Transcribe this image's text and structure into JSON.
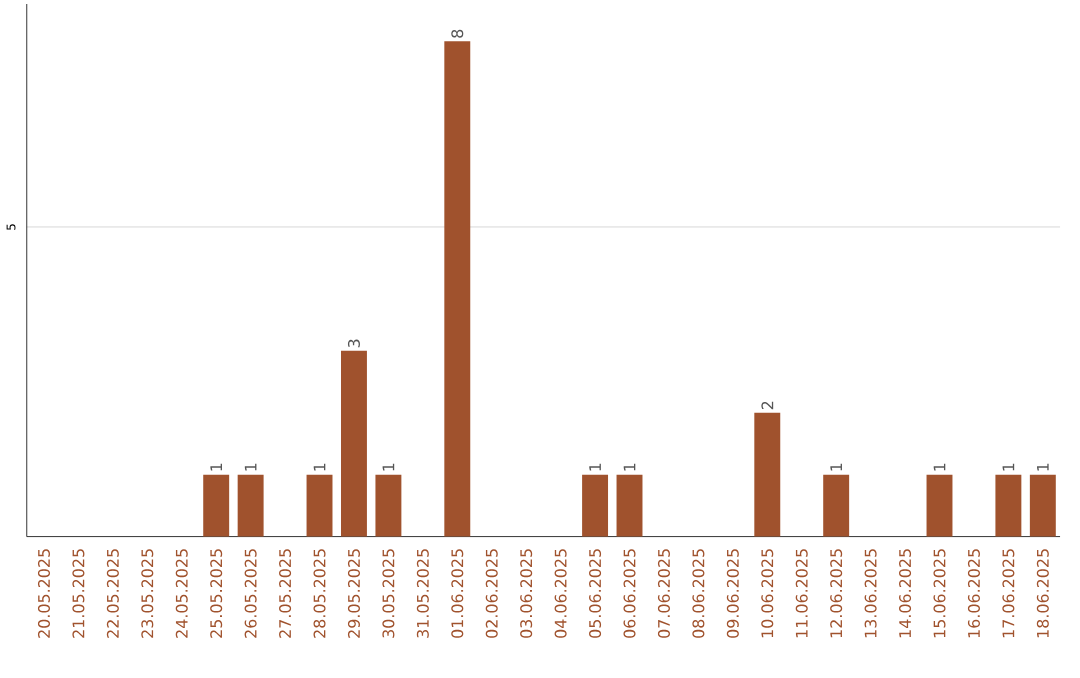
{
  "chart_data": {
    "type": "bar",
    "categories": [
      "20.05.2025",
      "21.05.2025",
      "22.05.2025",
      "23.05.2025",
      "24.05.2025",
      "25.05.2025",
      "26.05.2025",
      "27.05.2025",
      "28.05.2025",
      "29.05.2025",
      "30.05.2025",
      "31.05.2025",
      "01.06.2025",
      "02.06.2025",
      "03.06.2025",
      "04.06.2025",
      "05.06.2025",
      "06.06.2025",
      "07.06.2025",
      "08.06.2025",
      "09.06.2025",
      "10.06.2025",
      "11.06.2025",
      "12.06.2025",
      "13.06.2025",
      "14.06.2025",
      "15.06.2025",
      "16.06.2025",
      "17.06.2025",
      "18.06.2025"
    ],
    "values": [
      0,
      0,
      0,
      0,
      0,
      1,
      1,
      0,
      1,
      3,
      1,
      0,
      8,
      0,
      0,
      0,
      1,
      1,
      0,
      0,
      0,
      2,
      0,
      1,
      0,
      0,
      1,
      0,
      1,
      1
    ],
    "value_labels": [
      null,
      null,
      null,
      null,
      null,
      "1",
      "1",
      null,
      "1",
      "3",
      "1",
      null,
      "8",
      null,
      null,
      null,
      "1",
      "1",
      null,
      null,
      null,
      "2",
      null,
      "1",
      null,
      null,
      "1",
      null,
      "1",
      "1"
    ],
    "color": "#a0522d",
    "ylim": [
      0,
      8.6
    ],
    "yticks": [
      5
    ],
    "grid": "y"
  }
}
